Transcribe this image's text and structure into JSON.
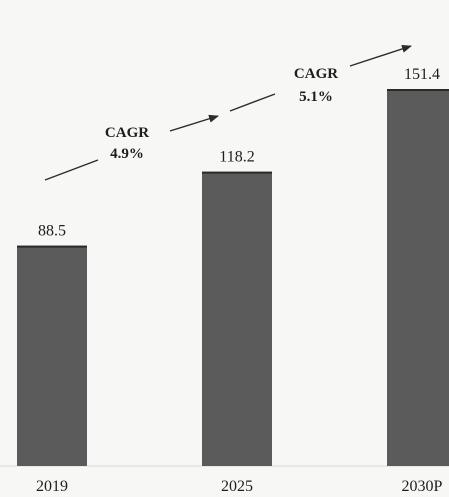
{
  "chart_data": {
    "type": "bar",
    "categories": [
      "2019",
      "2025",
      "2030P"
    ],
    "values": [
      88.5,
      118.2,
      151.4
    ],
    "value_labels": [
      "88.5",
      "118.2",
      "151.4"
    ],
    "title": "",
    "xlabel": "",
    "ylabel": "",
    "ylim": [
      0,
      160
    ],
    "grid": false,
    "legend": "none",
    "annotations": [
      {
        "from": "2019",
        "to": "2025",
        "text_line1": "CAGR",
        "text_line2": "4.9%"
      },
      {
        "from": "2025",
        "to": "2030P",
        "text_line1": "CAGR",
        "text_line2": "5.1%"
      }
    ]
  },
  "colors": {
    "bar": "#5b5b5b",
    "bar_top": "#2a2a2a",
    "text": "#1e1e1e",
    "arrow": "#2b2b2b",
    "baseline": "#d9d9d9",
    "background": "#f7f7f5"
  }
}
